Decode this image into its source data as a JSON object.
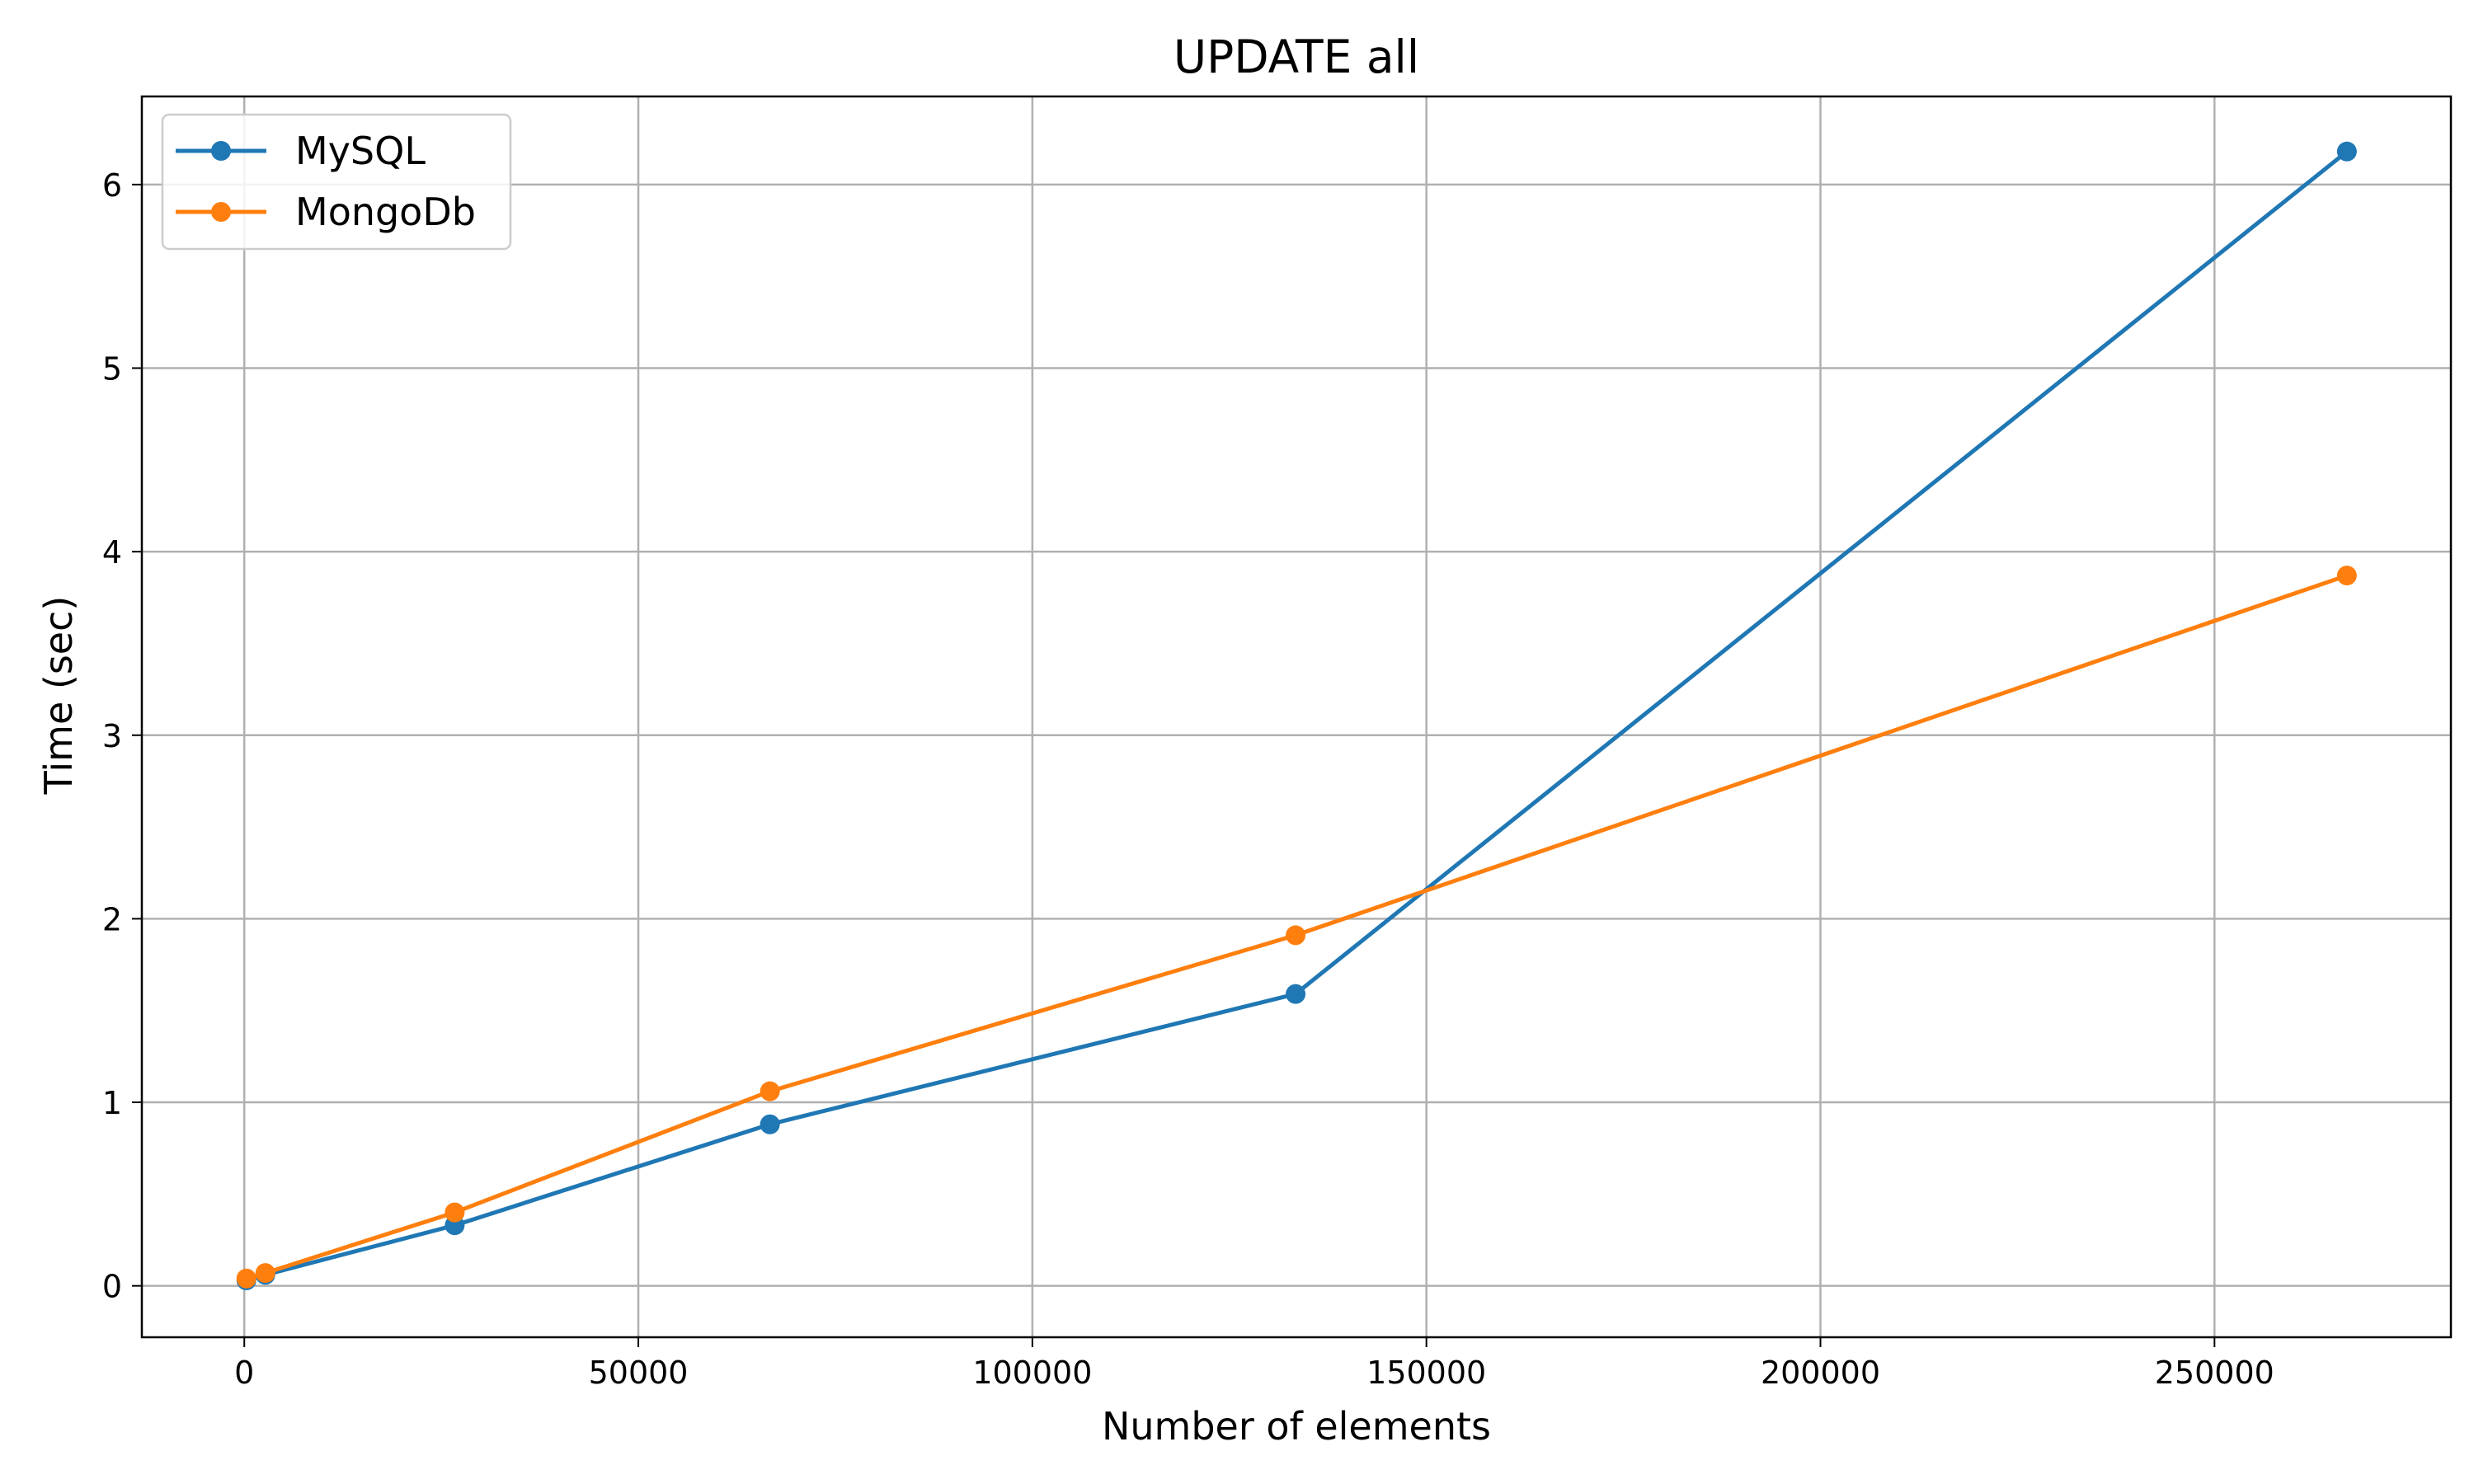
{
  "chart_data": {
    "type": "line",
    "title": "UPDATE all",
    "xlabel": "Number of elements",
    "ylabel": "Time (sec)",
    "xlim": [
      -13000,
      280000
    ],
    "ylim": [
      -0.28,
      6.48
    ],
    "xticks": [
      0,
      50000,
      100000,
      150000,
      200000,
      250000
    ],
    "yticks": [
      0,
      1,
      2,
      3,
      4,
      5,
      6
    ],
    "xtick_labels": [
      "0",
      "50000",
      "100000",
      "150000",
      "200000",
      "250000"
    ],
    "ytick_labels": [
      "0",
      "1",
      "2",
      "3",
      "4",
      "5",
      "6"
    ],
    "grid": true,
    "legend_position": "top-left",
    "series": [
      {
        "name": "MySQL",
        "color": "#1f77b4",
        "marker": "circle",
        "points": [
          [
            267,
            0.03
          ],
          [
            2670,
            0.06
          ],
          [
            26700,
            0.33
          ],
          [
            66700,
            0.88
          ],
          [
            133400,
            1.59
          ],
          [
            266800,
            6.18
          ]
        ]
      },
      {
        "name": "MongoDb",
        "color": "#ff7f0e",
        "marker": "circle",
        "points": [
          [
            267,
            0.04
          ],
          [
            2670,
            0.07
          ],
          [
            26700,
            0.4
          ],
          [
            66700,
            1.06
          ],
          [
            133400,
            1.91
          ],
          [
            266800,
            3.87
          ]
        ]
      }
    ]
  }
}
